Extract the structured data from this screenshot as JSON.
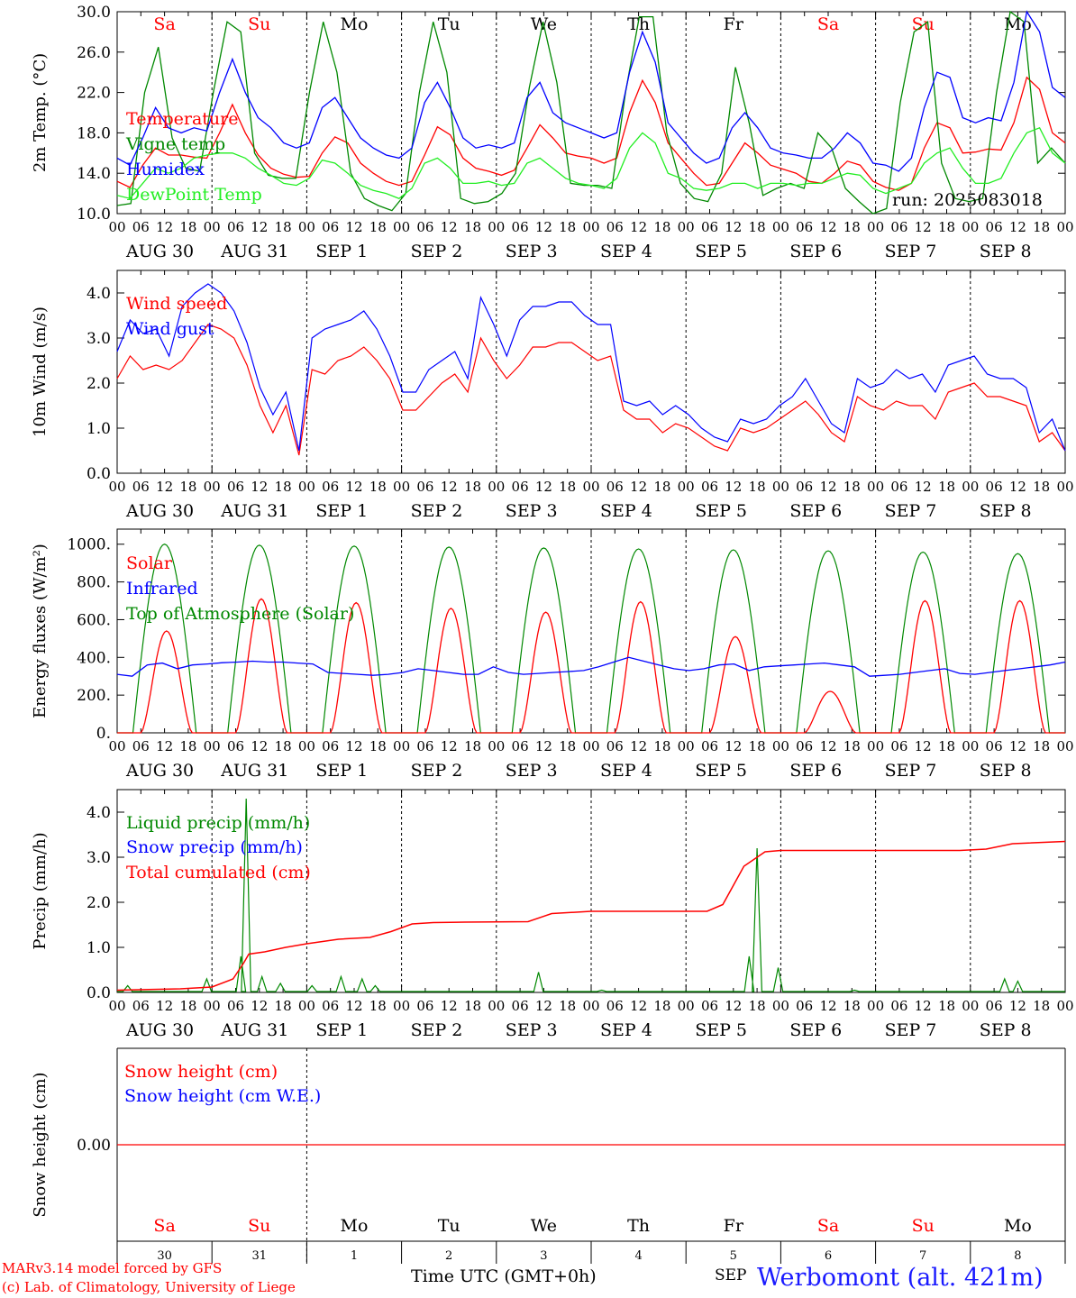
{
  "footer": {
    "model_line": "MARv3.14 model forced by GFS",
    "copyright_line": "(c) Lab. of Climatology, University of Liege",
    "time_axis_label": "Time UTC (GMT+0h)",
    "month_label": "SEP",
    "station_label": "Werbomont (alt. 421m)"
  },
  "colors": {
    "red": "#ff0000",
    "green": "#008800",
    "blue": "#0000ff",
    "lightgreen": "#22ee22",
    "axis": "#000000"
  },
  "chart_data": [
    {
      "type": "line",
      "ylabel": "2m Temp. (°C)",
      "ylim": [
        10,
        30
      ],
      "yticks": [
        "10.0",
        "14.0",
        "18.0",
        "22.0",
        "26.0",
        "30.0"
      ],
      "day_names": [
        "Sa",
        "Su",
        "Mo",
        "Tu",
        "We",
        "Th",
        "Fr",
        "Sa",
        "Su",
        "Mo"
      ],
      "day_name_colors": [
        "red",
        "red",
        "black",
        "black",
        "black",
        "black",
        "black",
        "red",
        "red",
        "black"
      ],
      "hour_ticks": [
        "00",
        "06",
        "12",
        "18"
      ],
      "date_labels": [
        "AUG 30",
        "AUG 31",
        "SEP 1",
        "SEP 2",
        "SEP 3",
        "SEP 4",
        "SEP 5",
        "SEP 6",
        "SEP 7",
        "SEP 8"
      ],
      "annotation": "run: 2025083018",
      "x_hours_step": 6,
      "series": [
        {
          "name": "Temperature",
          "color": "red",
          "values": [
            13.2,
            12.6,
            14.8,
            16.5,
            15.8,
            15.8,
            15.6,
            15.5,
            18.0,
            20.8,
            18.0,
            15.8,
            14.5,
            13.9,
            13.6,
            13.7,
            16.0,
            17.6,
            17.0,
            15.0,
            14.0,
            13.2,
            12.8,
            13.2,
            15.8,
            18.6,
            17.8,
            15.5,
            14.5,
            14.2,
            13.8,
            14.3,
            16.5,
            18.8,
            17.5,
            16.0,
            15.7,
            15.5,
            15.0,
            15.5,
            20.0,
            23.2,
            21.0,
            17.0,
            15.5,
            14.0,
            12.8,
            13.0,
            15.0,
            17.0,
            16.0,
            14.8,
            14.4,
            14.0,
            13.2,
            13.0,
            14.0,
            15.2,
            14.8,
            13.2,
            12.6,
            12.3,
            13.0,
            16.5,
            19.0,
            18.5,
            16.0,
            16.1,
            16.4,
            16.3,
            19.0,
            23.5,
            22.3,
            18.0,
            17.0
          ]
        },
        {
          "name": "Vigne temp",
          "color": "green",
          "values": [
            10.8,
            11.0,
            22.0,
            26.5,
            17.5,
            14.5,
            14.2,
            22.0,
            29.0,
            28.0,
            16.0,
            13.8,
            13.5,
            13.5,
            22.0,
            29.0,
            24.0,
            14.0,
            11.5,
            10.8,
            10.3,
            12.0,
            22.0,
            29.0,
            24.0,
            11.5,
            11.0,
            11.2,
            12.0,
            14.0,
            22.5,
            29.0,
            23.0,
            13.0,
            12.8,
            12.8,
            12.5,
            22.0,
            29.5,
            29.5,
            18.0,
            13.0,
            11.5,
            11.2,
            14.0,
            24.5,
            19.0,
            11.8,
            12.5,
            13.0,
            12.5,
            18.0,
            16.5,
            12.5,
            11.2,
            9.6,
            10.5,
            21.0,
            28.0,
            29.0,
            15.0,
            11.5,
            11.2,
            11.5,
            22.0,
            30.0,
            29.0,
            15.0,
            16.5,
            15.0
          ]
        },
        {
          "name": "Humidex",
          "color": "blue",
          "values": [
            15.5,
            14.8,
            17.5,
            20.5,
            18.5,
            18.0,
            18.5,
            18.2,
            22.0,
            25.3,
            22.0,
            19.5,
            18.5,
            17.0,
            16.5,
            17.0,
            20.5,
            21.5,
            19.5,
            17.5,
            16.5,
            15.8,
            15.5,
            16.5,
            21.0,
            23.0,
            20.5,
            17.5,
            16.5,
            16.8,
            16.5,
            17.0,
            21.5,
            23.0,
            20.0,
            19.0,
            18.5,
            18.0,
            17.5,
            18.0,
            24.0,
            28.0,
            25.0,
            19.0,
            17.5,
            16.0,
            15.0,
            15.5,
            18.5,
            20.0,
            18.5,
            16.5,
            16.0,
            15.8,
            15.5,
            15.5,
            16.5,
            18.0,
            17.0,
            15.0,
            14.8,
            14.2,
            15.5,
            20.5,
            24.0,
            23.5,
            19.5,
            19.0,
            19.5,
            19.2,
            23.0,
            30.0,
            28.0,
            22.5,
            21.5
          ]
        },
        {
          "name": "DewPoint Temp",
          "color": "lightgreen",
          "values": [
            11.8,
            11.5,
            13.0,
            14.5,
            14.0,
            14.5,
            15.5,
            15.8,
            16.0,
            16.0,
            15.5,
            14.5,
            13.8,
            13.0,
            12.8,
            13.5,
            15.3,
            15.0,
            14.0,
            12.8,
            12.3,
            12.0,
            11.5,
            12.5,
            15.0,
            15.5,
            14.5,
            13.0,
            13.0,
            13.2,
            12.8,
            13.0,
            15.0,
            15.5,
            14.5,
            13.5,
            13.0,
            12.8,
            12.5,
            13.5,
            16.5,
            18.0,
            17.0,
            14.0,
            13.5,
            12.5,
            12.3,
            12.5,
            13.0,
            13.0,
            12.5,
            13.0,
            13.0,
            12.8,
            13.0,
            13.0,
            13.5,
            14.0,
            13.8,
            12.5,
            12.0,
            12.5,
            13.0,
            15.0,
            16.0,
            16.5,
            14.5,
            13.0,
            13.0,
            13.5,
            16.0,
            18.0,
            18.5,
            16.0,
            15.0
          ]
        }
      ]
    },
    {
      "type": "line",
      "ylabel": "10m Wind (m/s)",
      "ylim": [
        0,
        4.5
      ],
      "yticks": [
        "0.0",
        "1.0",
        "2.0",
        "3.0",
        "4.0"
      ],
      "hour_ticks": [
        "00",
        "06",
        "12",
        "18"
      ],
      "date_labels": [
        "AUG 30",
        "AUG 31",
        "SEP 1",
        "SEP 2",
        "SEP 3",
        "SEP 4",
        "SEP 5",
        "SEP 6",
        "SEP 7",
        "SEP 8"
      ],
      "x_hours_step": 6,
      "series": [
        {
          "name": "Wind speed",
          "color": "red",
          "values": [
            2.1,
            2.6,
            2.3,
            2.4,
            2.3,
            2.5,
            2.9,
            3.3,
            3.2,
            3.0,
            2.4,
            1.5,
            0.9,
            1.5,
            0.4,
            2.3,
            2.2,
            2.5,
            2.6,
            2.8,
            2.5,
            2.1,
            1.4,
            1.4,
            1.7,
            2.0,
            2.2,
            1.8,
            3.0,
            2.5,
            2.1,
            2.4,
            2.8,
            2.8,
            2.9,
            2.9,
            2.7,
            2.5,
            2.6,
            1.4,
            1.2,
            1.2,
            0.9,
            1.1,
            1.0,
            0.8,
            0.6,
            0.5,
            1.0,
            0.9,
            1.0,
            1.2,
            1.4,
            1.6,
            1.3,
            0.9,
            0.7,
            1.7,
            1.5,
            1.4,
            1.6,
            1.5,
            1.5,
            1.2,
            1.8,
            1.9,
            2.0,
            1.7,
            1.7,
            1.6,
            1.5,
            0.7,
            0.9,
            0.5
          ]
        },
        {
          "name": "Wind gust",
          "color": "blue",
          "values": [
            2.7,
            3.4,
            3.1,
            3.2,
            2.6,
            3.7,
            4.0,
            4.2,
            4.0,
            3.6,
            2.9,
            1.9,
            1.3,
            1.8,
            0.5,
            3.0,
            3.2,
            3.3,
            3.4,
            3.6,
            3.2,
            2.6,
            1.8,
            1.8,
            2.3,
            2.5,
            2.7,
            2.1,
            3.9,
            3.3,
            2.6,
            3.4,
            3.7,
            3.7,
            3.8,
            3.8,
            3.5,
            3.3,
            3.3,
            1.6,
            1.5,
            1.6,
            1.3,
            1.5,
            1.3,
            1.0,
            0.8,
            0.7,
            1.2,
            1.1,
            1.2,
            1.5,
            1.7,
            2.1,
            1.6,
            1.1,
            0.9,
            2.1,
            1.9,
            2.0,
            2.3,
            2.1,
            2.2,
            1.8,
            2.4,
            2.5,
            2.6,
            2.2,
            2.1,
            2.1,
            1.9,
            0.9,
            1.2,
            0.5
          ]
        }
      ]
    },
    {
      "type": "line",
      "ylabel": "Energy fluxes (W/m²)",
      "ylim": [
        0,
        1080
      ],
      "yticks": [
        "0.",
        "200.",
        "400.",
        "600.",
        "800.",
        "1000."
      ],
      "hour_ticks": [
        "00",
        "06",
        "12",
        "18"
      ],
      "date_labels": [
        "AUG 30",
        "AUG 31",
        "SEP 1",
        "SEP 2",
        "SEP 3",
        "SEP 4",
        "SEP 5",
        "SEP 6",
        "SEP 7",
        "SEP 8"
      ],
      "series": [
        {
          "name": "Solar",
          "color": "red",
          "peaks": [
            540,
            710,
            690,
            660,
            640,
            695,
            510,
            220,
            700,
            700
          ]
        },
        {
          "name": "Infrared",
          "color": "blue",
          "values": [
            310,
            300,
            360,
            370,
            340,
            360,
            365,
            372,
            375,
            380,
            375,
            375,
            370,
            365,
            320,
            315,
            310,
            305,
            310,
            320,
            340,
            330,
            320,
            310,
            310,
            350,
            320,
            310,
            315,
            320,
            325,
            330,
            350,
            375,
            400,
            380,
            360,
            340,
            330,
            340,
            360,
            365,
            330,
            350,
            355,
            360,
            365,
            370,
            360,
            350,
            300,
            305,
            310,
            320,
            330,
            340,
            315,
            310,
            320,
            330,
            340,
            350,
            360,
            375
          ]
        },
        {
          "name": "Top of Atmosphere (Solar)",
          "color": "green",
          "peaks": [
            1000,
            995,
            990,
            985,
            980,
            975,
            970,
            965,
            958,
            950
          ]
        }
      ]
    },
    {
      "type": "line",
      "ylabel": "Precip (mm/h)",
      "ylim": [
        0,
        4.5
      ],
      "yticks": [
        "0.0",
        "1.0",
        "2.0",
        "3.0",
        "4.0"
      ],
      "hour_ticks": [
        "00",
        "06",
        "12",
        "18"
      ],
      "date_labels": [
        "AUG 30",
        "AUG 31",
        "SEP 1",
        "SEP 2",
        "SEP 3",
        "SEP 4",
        "SEP 5",
        "SEP 6",
        "SEP 7",
        "SEP 8"
      ],
      "series": [
        {
          "name": "Liquid precip (mm/h)",
          "color": "green",
          "spikes": [
            [
              4,
              0.15
            ],
            [
              34,
              0.3
            ],
            [
              47,
              0.8
            ],
            [
              49,
              4.3
            ],
            [
              55,
              0.35
            ],
            [
              62,
              0.2
            ],
            [
              74,
              0.15
            ],
            [
              85,
              0.35
            ],
            [
              93,
              0.3
            ],
            [
              98,
              0.15
            ],
            [
              160,
              0.45
            ],
            [
              184,
              0.05
            ],
            [
              243,
              3.2
            ],
            [
              251,
              0.55
            ],
            [
              240,
              0.8
            ],
            [
              280,
              0.05
            ],
            [
              337,
              0.3
            ],
            [
              342,
              0.25
            ]
          ]
        },
        {
          "name": "Snow precip (mm/h)",
          "color": "blue",
          "values": []
        },
        {
          "name": "Total cumulated (cm)",
          "color": "red",
          "points": [
            [
              0,
              0.05
            ],
            [
              24,
              0.08
            ],
            [
              36,
              0.12
            ],
            [
              44,
              0.3
            ],
            [
              48,
              0.65
            ],
            [
              50,
              0.85
            ],
            [
              56,
              0.9
            ],
            [
              64,
              1.0
            ],
            [
              72,
              1.08
            ],
            [
              84,
              1.18
            ],
            [
              96,
              1.22
            ],
            [
              104,
              1.35
            ],
            [
              112,
              1.52
            ],
            [
              120,
              1.55
            ],
            [
              132,
              1.56
            ],
            [
              156,
              1.57
            ],
            [
              165,
              1.75
            ],
            [
              180,
              1.8
            ],
            [
              224,
              1.8
            ],
            [
              230,
              1.95
            ],
            [
              238,
              2.8
            ],
            [
              246,
              3.12
            ],
            [
              252,
              3.15
            ],
            [
              320,
              3.15
            ],
            [
              330,
              3.18
            ],
            [
              340,
              3.3
            ],
            [
              360,
              3.35
            ]
          ]
        }
      ]
    },
    {
      "type": "line",
      "ylabel": "Snow height (cm)",
      "yticks": [
        "0.00"
      ],
      "day_names": [
        "Sa",
        "Su",
        "Mo",
        "Tu",
        "We",
        "Th",
        "Fr",
        "Sa",
        "Su",
        "Mo"
      ],
      "day_name_colors": [
        "red",
        "red",
        "black",
        "black",
        "black",
        "black",
        "black",
        "red",
        "red",
        "black"
      ],
      "day_numbers": [
        "30",
        "31",
        "1",
        "2",
        "3",
        "4",
        "5",
        "6",
        "7",
        "8"
      ],
      "series": [
        {
          "name": "Snow height (cm)",
          "color": "red",
          "values": [
            0,
            0
          ]
        },
        {
          "name": "Snow height (cm W.E.)",
          "color": "blue",
          "values": []
        }
      ]
    }
  ]
}
